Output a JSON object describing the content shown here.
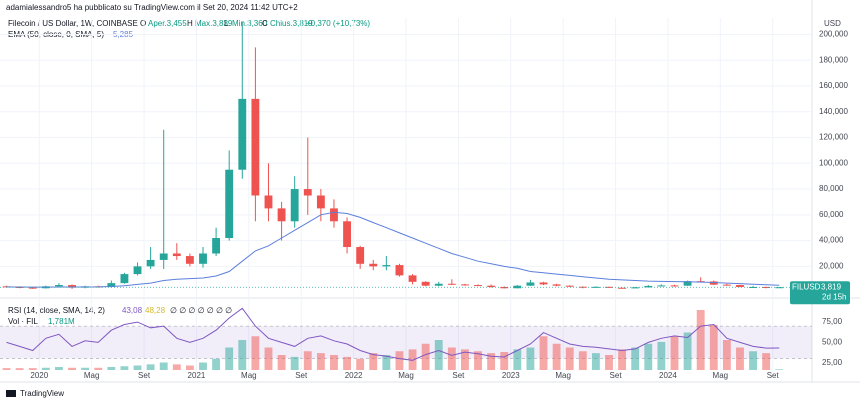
{
  "header": {
    "publisher": "adamialessandro5 ha pubblicato su TradingView.com il Set 20, 2024 11:42 UTC+2",
    "currency": "USD",
    "footer": "TradingView"
  },
  "legend": {
    "symbol": "Filecoin / US Dollar, 1W, COINBASE",
    "open": "O",
    "open_value": "Aper.3,455",
    "high": "H",
    "high_value": "Max.3,839",
    "low": "L",
    "low_value": "Min.3,360",
    "close": "C",
    "close_value": "Chius.3,819",
    "change": "+0,370 (+10,73%)",
    "ema": "EMA (50, close, 0, SMA, 5)",
    "ema_value": "5,285",
    "rsi": "RSI (14, close, SMA, 14, 2)",
    "rsi_value": "43,08",
    "rsi_ma_value": "48,28",
    "rsi_empty": "∅ ∅ ∅ ∅ ∅ ∅ ∅",
    "vol": "Vol · FIL",
    "vol_value": "1,781M"
  },
  "price_tag": {
    "symbol": "FILUSD",
    "price": "3,819",
    "countdown": "2d 15h"
  },
  "chart_data": {
    "type": "candlestick",
    "x": [
      "2019-10",
      "2019-11",
      "2019-12",
      "2020-01",
      "2020-02",
      "2020-03",
      "2020-04",
      "2020-05",
      "2020-06",
      "2020-07",
      "2020-08",
      "2020-09",
      "2020-10",
      "2020-11",
      "2020-12",
      "2021-01",
      "2021-02",
      "2021-03",
      "2021-04",
      "2021-05",
      "2021-06",
      "2021-07",
      "2021-08",
      "2021-09",
      "2021-10",
      "2021-11",
      "2021-12",
      "2022-01",
      "2022-02",
      "2022-03",
      "2022-04",
      "2022-05",
      "2022-06",
      "2022-07",
      "2022-08",
      "2022-09",
      "2022-10",
      "2022-11",
      "2022-12",
      "2023-01",
      "2023-02",
      "2023-03",
      "2023-04",
      "2023-05",
      "2023-06",
      "2023-07",
      "2023-08",
      "2023-09",
      "2023-10",
      "2023-11",
      "2023-12",
      "2024-01",
      "2024-02",
      "2024-03",
      "2024-04",
      "2024-05",
      "2024-06",
      "2024-07",
      "2024-08",
      "2024-09"
    ],
    "open": [
      4.5,
      4,
      3.5,
      3,
      4.5,
      5.5,
      3.5,
      4.5,
      4,
      7,
      14,
      20,
      25,
      30,
      28,
      22,
      30,
      42,
      95,
      150,
      75,
      65,
      55,
      80,
      75,
      65,
      55,
      35,
      22,
      20,
      21,
      13,
      8,
      5,
      6.5,
      6,
      5.5,
      5,
      4,
      3,
      5,
      7.5,
      6,
      5,
      4.2,
      4,
      4.1,
      3.4,
      3.3,
      3.7,
      4.8,
      5.2,
      5,
      8.5,
      8.3,
      5.8,
      5.5,
      4,
      4,
      3.5
    ],
    "high": [
      5,
      4.5,
      4,
      5,
      7,
      6,
      5,
      5,
      9,
      15,
      23,
      35,
      126,
      38,
      30,
      35,
      50,
      110,
      210,
      190,
      100,
      70,
      90,
      120,
      80,
      72,
      58,
      36,
      25,
      28,
      22,
      14,
      8.5,
      8,
      10,
      6.5,
      6,
      6,
      4.5,
      5.5,
      9.5,
      8,
      6.5,
      5.3,
      4.5,
      4.5,
      4.2,
      3.5,
      4,
      5.5,
      6,
      5.8,
      9,
      11.5,
      9,
      6.5,
      5.7,
      4.8,
      4.2,
      3.9
    ],
    "low": [
      3.5,
      3,
      2.5,
      2.8,
      4,
      2.5,
      3,
      3.5,
      3.5,
      6.5,
      13,
      18,
      18,
      25,
      20,
      19,
      28,
      40,
      88,
      55,
      55,
      40,
      50,
      60,
      55,
      50,
      30,
      18,
      17,
      17,
      12,
      6,
      4.5,
      4.5,
      5.5,
      5,
      4.7,
      3.5,
      2.8,
      2.9,
      4.8,
      5.5,
      4.5,
      4,
      3,
      3.8,
      3.2,
      3.1,
      3.1,
      3.6,
      4.5,
      4.3,
      4.9,
      7.5,
      5.5,
      5,
      3.9,
      3.7,
      3,
      3.2
    ],
    "close": [
      4,
      3.5,
      3,
      4.5,
      5.5,
      3.5,
      4.5,
      4,
      7,
      14,
      20,
      25,
      30,
      28,
      22,
      30,
      42,
      95,
      150,
      75,
      65,
      55,
      80,
      75,
      65,
      55,
      35,
      22,
      20,
      21,
      13,
      8,
      5,
      6.5,
      6,
      5.5,
      5,
      4,
      3,
      5,
      7.5,
      6,
      5,
      4.2,
      4,
      4.1,
      3.4,
      3.3,
      3.7,
      4.8,
      5.2,
      5,
      8.5,
      8.3,
      5.8,
      5.5,
      4,
      4,
      3.5,
      3.819
    ],
    "ema": [
      4,
      4,
      3.9,
      3.9,
      4,
      4,
      4,
      4.1,
      4.4,
      5,
      6,
      7,
      9,
      10,
      10.5,
      11,
      12.5,
      16,
      24,
      32,
      36,
      42,
      48,
      54,
      60,
      62,
      61,
      58,
      54,
      50,
      46,
      42,
      38,
      34,
      30,
      27,
      24,
      22,
      20,
      18.5,
      16,
      15,
      14,
      13,
      12,
      11,
      10,
      9.5,
      9,
      8.6,
      8.3,
      8.2,
      8,
      7.8,
      7.5,
      7,
      6.6,
      6.1,
      5.7,
      5.285
    ],
    "rsi": [
      50,
      45,
      40,
      55,
      60,
      45,
      52,
      50,
      65,
      72,
      75,
      68,
      70,
      55,
      50,
      55,
      65,
      80,
      92,
      70,
      55,
      50,
      45,
      55,
      58,
      52,
      48,
      40,
      35,
      33,
      30,
      28,
      35,
      40,
      34,
      38,
      36,
      33,
      32,
      40,
      48,
      62,
      55,
      48,
      45,
      44,
      42,
      40,
      42,
      50,
      55,
      58,
      56,
      70,
      72,
      55,
      50,
      45,
      43,
      43.08
    ],
    "volume": [
      5,
      5,
      5,
      6,
      8,
      6,
      6,
      6,
      8,
      10,
      12,
      15,
      20,
      15,
      12,
      20,
      30,
      60,
      80,
      90,
      60,
      40,
      35,
      50,
      45,
      40,
      35,
      30,
      45,
      40,
      50,
      55,
      70,
      80,
      60,
      55,
      50,
      45,
      48,
      55,
      60,
      90,
      70,
      60,
      50,
      45,
      40,
      55,
      60,
      70,
      75,
      90,
      100,
      160,
      120,
      80,
      60,
      50,
      45,
      1.781
    ],
    "up_color": "#26a69a",
    "down_color": "#ef5350",
    "ema_color": "#5b7fdb",
    "rsi_color": "#7e57c2",
    "xlim": [
      "2019-10",
      "2024-12"
    ],
    "xticks": [
      {
        "value": "2020-01",
        "label": "2020"
      },
      {
        "value": "2020-05",
        "label": "Mag"
      },
      {
        "value": "2020-09",
        "label": "Set"
      },
      {
        "value": "2021-01",
        "label": "2021"
      },
      {
        "value": "2021-05",
        "label": "Mag"
      },
      {
        "value": "2021-09",
        "label": "Set"
      },
      {
        "value": "2022-01",
        "label": "2022"
      },
      {
        "value": "2022-05",
        "label": "Mag"
      },
      {
        "value": "2022-09",
        "label": "Set"
      },
      {
        "value": "2023-01",
        "label": "2023"
      },
      {
        "value": "2023-05",
        "label": "Mag"
      },
      {
        "value": "2023-09",
        "label": "Set"
      },
      {
        "value": "2024-01",
        "label": "2024"
      },
      {
        "value": "2024-05",
        "label": "Mag"
      },
      {
        "value": "2024-09",
        "label": "Set"
      }
    ],
    "ylim": [
      -3,
      205
    ],
    "yticks": [
      {
        "value": 20,
        "label": "20,000"
      },
      {
        "value": 40,
        "label": "40,000"
      },
      {
        "value": 60,
        "label": "60,000"
      },
      {
        "value": 80,
        "label": "80,000"
      },
      {
        "value": 100,
        "label": "100,000"
      },
      {
        "value": 120,
        "label": "120,000"
      },
      {
        "value": 140,
        "label": "140,000"
      },
      {
        "value": 160,
        "label": "160,000"
      },
      {
        "value": 180,
        "label": "180,000"
      },
      {
        "value": 200,
        "label": "200,000"
      }
    ],
    "rsi_ylim": [
      16,
      96
    ],
    "rsi_band": [
      30,
      70
    ],
    "rsi_yticks": [
      {
        "value": 25,
        "label": "25,00"
      },
      {
        "value": 50,
        "label": "50,00"
      },
      {
        "value": 75,
        "label": "75,00"
      }
    ],
    "grid": true
  }
}
